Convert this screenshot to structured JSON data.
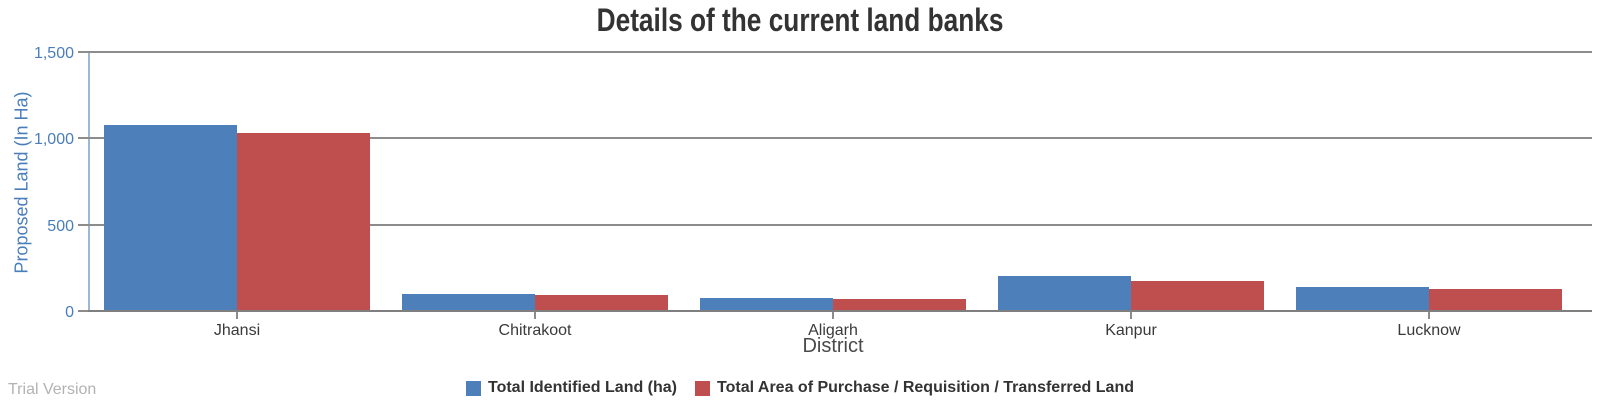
{
  "title": "Details of the current land banks",
  "watermark": "Trial Version",
  "colors": {
    "series_identified": "#4d7fba",
    "series_purchase": "#bf4e4e",
    "gridline": "#8c8c8c",
    "y_axis_line": "#9db8d2",
    "tick_label": "#4a7ebb",
    "category_label": "#3a3a3a",
    "title_text": "#333333",
    "watermark_text": "#b2b2b2"
  },
  "chart_data": {
    "type": "bar",
    "title": "Details of the current land banks",
    "xlabel": "District",
    "ylabel": "Proposed Land (In Ha)",
    "categories": [
      "Jhansi",
      "Chitrakoot",
      "Aligarh",
      "Kanpur",
      "Lucknow"
    ],
    "series": [
      {
        "name": "Total Identified Land (ha)",
        "color": "#4d7fba",
        "values": [
          1085,
          105,
          80,
          210,
          145
        ]
      },
      {
        "name": "Total Area of Purchase / Requisition / Transferred Land",
        "color": "#bf4e4e",
        "values": [
          1035,
          97,
          74,
          178,
          134
        ]
      }
    ],
    "ylim": [
      0,
      1500
    ],
    "yticks": [
      0,
      500,
      1000,
      1500
    ],
    "ytick_labels": [
      "0",
      "500",
      "1,000",
      "1,500"
    ],
    "grid": true,
    "legend_position": "bottom"
  }
}
